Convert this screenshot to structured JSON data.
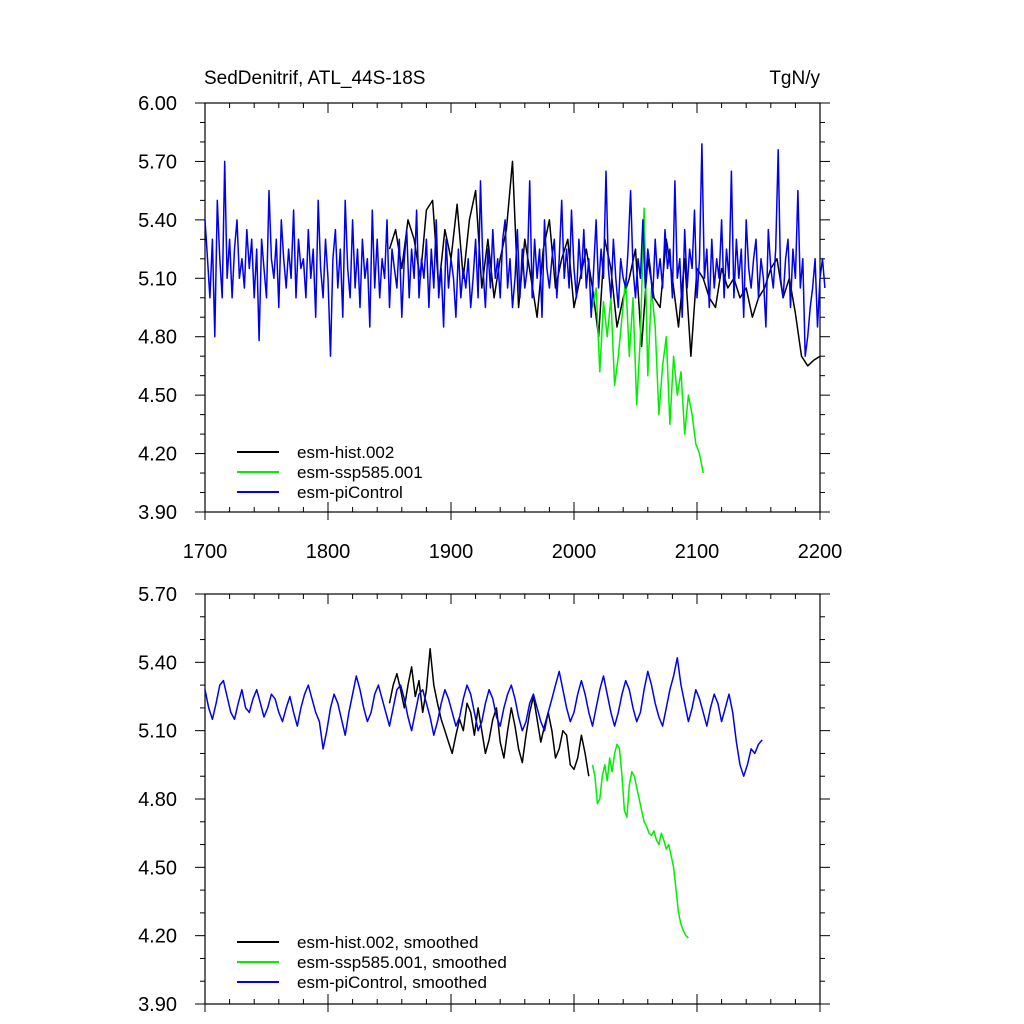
{
  "figure": {
    "title_left": "SedDenitrif, ATL_44S-18S",
    "title_right": "TgN/y"
  },
  "chart_data": [
    {
      "type": "line",
      "name": "raw",
      "x_range": [
        1700,
        2200
      ],
      "y_range": [
        3.9,
        6.0
      ],
      "x_ticks": [
        "1700",
        "1800",
        "1900",
        "2000",
        "2100",
        "2200"
      ],
      "y_ticks": [
        "3.90",
        "4.20",
        "4.50",
        "4.80",
        "5.10",
        "5.40",
        "5.70",
        "6.00"
      ],
      "legend_position": "bottom-left",
      "series": [
        {
          "name": "esm-hist.002",
          "color": "#000000",
          "x_start": 1850,
          "x_step": 5,
          "values": [
            5.25,
            5.35,
            5.15,
            5.4,
            5.3,
            5.1,
            5.45,
            5.5,
            5.05,
            5.35,
            5.2,
            5.48,
            5.1,
            5.4,
            5.55,
            5.05,
            5.3,
            5.0,
            5.2,
            5.35,
            5.7,
            4.95,
            5.3,
            5.1,
            4.9,
            5.25,
            5.4,
            5.05,
            5.2,
            5.3,
            4.95,
            5.1,
            5.25,
            5.05,
            4.8,
            5.3,
            5.15,
            4.85,
            5.0,
            5.1,
            5.25,
            4.75,
            5.2,
            5.0,
            4.95,
            5.3,
            5.1,
            4.85,
            5.2,
            4.7,
            5.15,
            5.1,
            5.0,
            4.95,
            5.15,
            5.05,
            5.1,
            5.0,
            5.05,
            4.9,
            5.0,
            5.05,
            5.15,
            5.2,
            5.0,
            5.1,
            4.92,
            4.7,
            4.65,
            4.68,
            4.7
          ]
        },
        {
          "name": "esm-ssp585.001",
          "color": "#00ee00",
          "x_start": 2015,
          "x_step": 3,
          "values": [
            4.95,
            5.05,
            4.62,
            4.98,
            4.8,
            5.0,
            4.55,
            4.7,
            4.9,
            5.1,
            4.7,
            5.0,
            4.45,
            4.8,
            5.46,
            4.6,
            5.05,
            4.85,
            4.4,
            4.65,
            4.8,
            4.35,
            4.7,
            4.5,
            4.62,
            4.3,
            4.5,
            4.4,
            4.25,
            4.2,
            4.1
          ]
        },
        {
          "name": "esm-piControl",
          "color": "#0000ee",
          "x_start": 1700,
          "x_step": 2,
          "values": [
            5.4,
            5.2,
            5.0,
            5.3,
            4.8,
            5.5,
            5.2,
            5.0,
            5.7,
            5.1,
            5.3,
            5.0,
            5.25,
            5.4,
            5.1,
            5.2,
            5.05,
            5.35,
            5.15,
            5.3,
            5.0,
            5.25,
            4.78,
            5.3,
            5.15,
            5.0,
            5.55,
            5.2,
            5.1,
            5.3,
            4.95,
            5.4,
            5.2,
            5.05,
            5.25,
            5.1,
            5.45,
            5.0,
            5.3,
            5.15,
            5.2,
            5.0,
            5.35,
            5.1,
            5.25,
            4.9,
            5.5,
            5.15,
            5.0,
            5.3,
            5.1,
            4.7,
            5.2,
            5.35,
            5.05,
            5.25,
            4.9,
            5.5,
            5.15,
            5.0,
            5.4,
            5.05,
            5.25,
            4.95,
            5.3,
            5.1,
            5.2,
            4.85,
            5.45,
            5.05,
            5.3,
            5.0,
            5.2,
            5.1,
            5.4,
            4.95,
            5.25,
            5.15,
            5.05,
            5.3,
            4.9,
            5.2,
            5.35,
            5.0,
            5.25,
            5.1,
            5.45,
            5.0,
            5.2,
            5.1,
            5.3,
            4.95,
            5.25,
            5.05,
            5.4,
            5.0,
            5.15,
            4.85,
            5.3,
            5.05,
            5.2,
            5.1,
            4.9,
            5.25,
            5.0,
            5.15,
            5.05,
            5.2,
            4.95,
            5.1,
            5.3,
            5.0,
            5.6,
            5.15,
            4.95,
            5.25,
            5.05,
            5.35,
            5.1,
            5.2,
            5.0,
            5.3,
            5.4,
            5.05,
            5.2,
            4.95,
            5.1,
            5.35,
            5.0,
            5.25,
            5.05,
            5.15,
            5.6,
            5.0,
            5.3,
            5.1,
            5.25,
            4.9,
            5.4,
            5.15,
            5.05,
            5.2,
            5.3,
            5.0,
            5.2,
            5.5,
            5.1,
            5.25,
            5.05,
            5.45,
            5.15,
            5.0,
            5.3,
            5.1,
            5.35,
            5.05,
            5.2,
            4.9,
            5.15,
            5.4,
            5.05,
            5.25,
            5.1,
            5.65,
            5.15,
            5.0,
            5.3,
            5.1,
            4.95,
            5.2,
            5.1,
            5.05,
            5.25,
            5.55,
            5.15,
            5.0,
            5.2,
            5.1,
            5.4,
            5.05,
            5.25,
            5.15,
            5.0,
            5.3,
            5.1,
            5.2,
            5.05,
            5.35,
            5.15,
            5.25,
            5.0,
            5.6,
            5.1,
            5.2,
            4.9,
            5.35,
            5.05,
            5.25,
            5.15,
            5.45,
            5.0,
            5.2,
            5.79,
            5.1,
            5.25,
            4.95,
            5.3,
            5.05,
            5.2,
            5.1,
            5.4,
            5.0,
            5.25,
            5.1,
            5.65,
            5.0,
            5.3,
            5.1,
            5.25,
            4.9,
            5.4,
            5.15,
            5.05,
            5.2,
            5.3,
            5.0,
            5.2,
            5.1,
            4.85,
            5.35,
            5.15,
            5.05,
            5.25,
            5.76,
            5.1,
            5.0,
            5.2,
            5.3,
            4.95,
            5.25,
            5.1,
            5.55,
            5.05,
            5.2,
            4.7,
            4.8,
            4.95,
            5.05,
            5.2,
            4.85,
            5.1,
            5.2,
            5.05
          ]
        }
      ]
    },
    {
      "type": "line",
      "name": "smoothed",
      "x_range": [
        1700,
        2200
      ],
      "y_range": [
        3.9,
        5.7
      ],
      "x_ticks": [],
      "y_ticks": [
        "3.90",
        "4.20",
        "4.50",
        "4.80",
        "5.10",
        "5.40",
        "5.70"
      ],
      "legend_position": "bottom-left",
      "series": [
        {
          "name": "esm-hist.002, smoothed",
          "color": "#000000",
          "x_start": 1850,
          "x_step": 3,
          "values": [
            5.22,
            5.3,
            5.35,
            5.28,
            5.2,
            5.3,
            5.38,
            5.25,
            5.32,
            5.18,
            5.28,
            5.46,
            5.3,
            5.22,
            5.15,
            5.1,
            5.05,
            5.0,
            5.08,
            5.15,
            5.1,
            5.22,
            5.18,
            5.08,
            5.2,
            5.1,
            5.0,
            5.06,
            5.15,
            5.2,
            5.05,
            4.98,
            5.1,
            5.2,
            5.12,
            5.02,
            4.96,
            5.08,
            5.18,
            5.25,
            5.15,
            5.05,
            5.12,
            5.18,
            5.1,
            4.98,
            5.02,
            5.1,
            5.08,
            4.95,
            4.93,
            4.98,
            5.08,
            5.0,
            4.9
          ]
        },
        {
          "name": "esm-ssp585.001, smoothed",
          "color": "#00ee00",
          "x_start": 2015,
          "x_step": 2,
          "values": [
            4.95,
            4.9,
            4.78,
            4.8,
            4.9,
            4.95,
            4.88,
            4.98,
            4.92,
            5.0,
            5.04,
            5.02,
            4.9,
            4.75,
            4.72,
            4.86,
            4.92,
            4.9,
            4.85,
            4.8,
            4.75,
            4.7,
            4.68,
            4.65,
            4.64,
            4.66,
            4.62,
            4.6,
            4.65,
            4.62,
            4.58,
            4.6,
            4.55,
            4.5,
            4.4,
            4.3,
            4.25,
            4.22,
            4.2,
            4.19
          ]
        },
        {
          "name": "esm-piControl, smoothed",
          "color": "#0000ee",
          "x_start": 1700,
          "x_step": 3,
          "values": [
            5.28,
            5.2,
            5.15,
            5.22,
            5.3,
            5.32,
            5.25,
            5.18,
            5.15,
            5.22,
            5.28,
            5.2,
            5.18,
            5.24,
            5.28,
            5.22,
            5.16,
            5.2,
            5.26,
            5.24,
            5.18,
            5.14,
            5.2,
            5.25,
            5.18,
            5.12,
            5.2,
            5.26,
            5.3,
            5.24,
            5.18,
            5.14,
            5.02,
            5.1,
            5.2,
            5.26,
            5.22,
            5.15,
            5.08,
            5.18,
            5.26,
            5.34,
            5.28,
            5.2,
            5.14,
            5.18,
            5.26,
            5.3,
            5.24,
            5.18,
            5.12,
            5.2,
            5.28,
            5.3,
            5.24,
            5.16,
            5.1,
            5.18,
            5.26,
            5.28,
            5.22,
            5.16,
            5.08,
            5.14,
            5.22,
            5.28,
            5.24,
            5.18,
            5.12,
            5.16,
            5.24,
            5.3,
            5.26,
            5.18,
            5.1,
            5.14,
            5.22,
            5.28,
            5.24,
            5.16,
            5.12,
            5.2,
            5.26,
            5.3,
            5.24,
            5.16,
            5.1,
            5.14,
            5.22,
            5.26,
            5.2,
            5.14,
            5.1,
            5.18,
            5.24,
            5.3,
            5.36,
            5.28,
            5.2,
            5.14,
            5.18,
            5.26,
            5.32,
            5.26,
            5.18,
            5.12,
            5.2,
            5.28,
            5.34,
            5.26,
            5.18,
            5.12,
            5.18,
            5.26,
            5.32,
            5.28,
            5.2,
            5.14,
            5.18,
            5.28,
            5.36,
            5.3,
            5.22,
            5.16,
            5.12,
            5.2,
            5.28,
            5.34,
            5.42,
            5.3,
            5.22,
            5.14,
            5.2,
            5.28,
            5.24,
            5.18,
            5.12,
            5.2,
            5.26,
            5.22,
            5.14,
            5.2,
            5.26,
            5.18,
            5.05,
            4.95,
            4.9,
            4.95,
            5.02,
            5.0,
            5.04,
            5.06
          ]
        }
      ]
    }
  ]
}
